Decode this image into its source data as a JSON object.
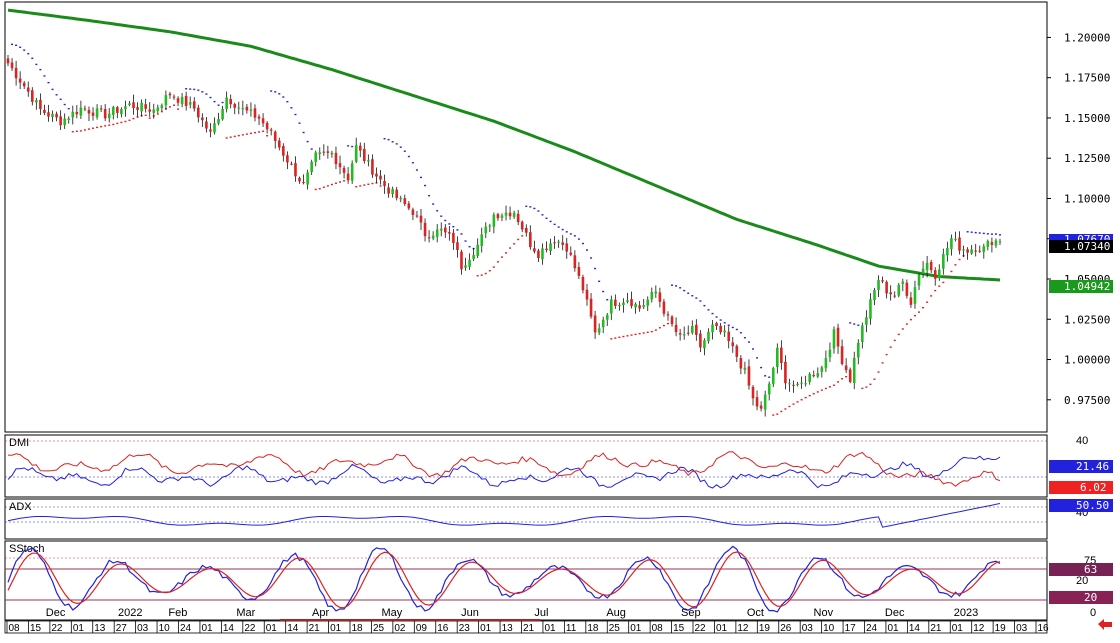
{
  "chart_data": {
    "type": "candlestick",
    "instrument": "EUR/USD daily",
    "price_panel": {
      "yticks": [
        "1.20000",
        "1.17500",
        "1.15000",
        "1.12500",
        "1.10000",
        "1.07500",
        "1.05000",
        "1.02500",
        "1.00000",
        "0.97500"
      ],
      "ylim": [
        0.955,
        1.222
      ],
      "last_price": "1.07340",
      "psar_value": "1.07670",
      "ma_value": "1.04942",
      "ma_color": "#1a8a1a",
      "bull_color": "#22bb22",
      "bear_color": "#dd2222",
      "anchors": [
        {
          "i": 0,
          "p": 1.184
        },
        {
          "i": 4,
          "p": 1.17
        },
        {
          "i": 8,
          "p": 1.155
        },
        {
          "i": 13,
          "p": 1.148
        },
        {
          "i": 18,
          "p": 1.156
        },
        {
          "i": 24,
          "p": 1.152
        },
        {
          "i": 30,
          "p": 1.158
        },
        {
          "i": 36,
          "p": 1.155
        },
        {
          "i": 40,
          "p": 1.165
        },
        {
          "i": 46,
          "p": 1.156
        },
        {
          "i": 50,
          "p": 1.14
        },
        {
          "i": 54,
          "p": 1.163
        },
        {
          "i": 58,
          "p": 1.155
        },
        {
          "i": 62,
          "p": 1.15
        },
        {
          "i": 65,
          "p": 1.14
        },
        {
          "i": 70,
          "p": 1.12
        },
        {
          "i": 73,
          "p": 1.108
        },
        {
          "i": 76,
          "p": 1.126
        },
        {
          "i": 80,
          "p": 1.128
        },
        {
          "i": 84,
          "p": 1.113
        },
        {
          "i": 86,
          "p": 1.132
        },
        {
          "i": 89,
          "p": 1.121
        },
        {
          "i": 93,
          "p": 1.108
        },
        {
          "i": 97,
          "p": 1.098
        },
        {
          "i": 100,
          "p": 1.092
        },
        {
          "i": 103,
          "p": 1.078
        },
        {
          "i": 107,
          "p": 1.08
        },
        {
          "i": 110,
          "p": 1.074
        },
        {
          "i": 112,
          "p": 1.058
        },
        {
          "i": 116,
          "p": 1.071
        },
        {
          "i": 120,
          "p": 1.09
        },
        {
          "i": 125,
          "p": 1.092
        },
        {
          "i": 129,
          "p": 1.072
        },
        {
          "i": 131,
          "p": 1.066
        },
        {
          "i": 135,
          "p": 1.075
        },
        {
          "i": 138,
          "p": 1.07
        },
        {
          "i": 142,
          "p": 1.044
        },
        {
          "i": 145,
          "p": 1.016
        },
        {
          "i": 149,
          "p": 1.035
        },
        {
          "i": 153,
          "p": 1.038
        },
        {
          "i": 156,
          "p": 1.032
        },
        {
          "i": 160,
          "p": 1.042
        },
        {
          "i": 163,
          "p": 1.025
        },
        {
          "i": 166,
          "p": 1.013
        },
        {
          "i": 169,
          "p": 1.018
        },
        {
          "i": 171,
          "p": 1.008
        },
        {
          "i": 174,
          "p": 1.02
        },
        {
          "i": 177,
          "p": 1.015
        },
        {
          "i": 180,
          "p": 1.002
        },
        {
          "i": 182,
          "p": 0.992
        },
        {
          "i": 184,
          "p": 0.975
        },
        {
          "i": 186,
          "p": 0.968
        },
        {
          "i": 188,
          "p": 0.985
        },
        {
          "i": 190,
          "p": 1.005
        },
        {
          "i": 192,
          "p": 0.988
        },
        {
          "i": 195,
          "p": 0.982
        },
        {
          "i": 198,
          "p": 0.99
        },
        {
          "i": 201,
          "p": 0.995
        },
        {
          "i": 204,
          "p": 1.016
        },
        {
          "i": 206,
          "p": 1.0
        },
        {
          "i": 208,
          "p": 0.988
        },
        {
          "i": 210,
          "p": 1.012
        },
        {
          "i": 213,
          "p": 1.035
        },
        {
          "i": 215,
          "p": 1.05
        },
        {
          "i": 217,
          "p": 1.043
        },
        {
          "i": 219,
          "p": 1.04
        },
        {
          "i": 221,
          "p": 1.048
        },
        {
          "i": 223,
          "p": 1.036
        },
        {
          "i": 225,
          "p": 1.054
        },
        {
          "i": 227,
          "p": 1.06
        },
        {
          "i": 229,
          "p": 1.053
        },
        {
          "i": 231,
          "p": 1.064
        },
        {
          "i": 233,
          "p": 1.075
        },
        {
          "i": 235,
          "p": 1.07
        },
        {
          "i": 237,
          "p": 1.068
        },
        {
          "i": 239,
          "p": 1.07
        },
        {
          "i": 241,
          "p": 1.069
        },
        {
          "i": 243,
          "p": 1.074
        },
        {
          "i": 245,
          "p": 1.0734
        }
      ],
      "ma_points": [
        {
          "i": 0,
          "p": 1.217
        },
        {
          "i": 20,
          "p": 1.2105
        },
        {
          "i": 40,
          "p": 1.2035
        },
        {
          "i": 60,
          "p": 1.1945
        },
        {
          "i": 80,
          "p": 1.18
        },
        {
          "i": 100,
          "p": 1.164
        },
        {
          "i": 120,
          "p": 1.148
        },
        {
          "i": 140,
          "p": 1.129
        },
        {
          "i": 160,
          "p": 1.108
        },
        {
          "i": 180,
          "p": 1.087
        },
        {
          "i": 200,
          "p": 1.071
        },
        {
          "i": 215,
          "p": 1.058
        },
        {
          "i": 230,
          "p": 1.0515
        },
        {
          "i": 245,
          "p": 1.0494
        }
      ]
    },
    "bar_count": 246,
    "month_labels": [
      {
        "i": 14,
        "label": "Dec"
      },
      {
        "i": 36,
        "label": "2022"
      },
      {
        "i": 50,
        "label": "Feb"
      },
      {
        "i": 70,
        "label": "Mar"
      },
      {
        "i": 92,
        "label": "Apr"
      },
      {
        "i": 113,
        "label": "May"
      },
      {
        "i": 136,
        "label": "Jun"
      },
      {
        "i": 157,
        "label": "Jul"
      },
      {
        "i": 179,
        "label": "Aug"
      },
      {
        "i": 201,
        "label": "Sep"
      },
      {
        "i": 220,
        "label": "Oct"
      },
      {
        "i": 240,
        "label": "Nov"
      },
      {
        "i": 261,
        "label": "Dec"
      },
      {
        "i": 282,
        "label": "2023"
      }
    ],
    "date_ticks": [
      "08",
      "15",
      "22",
      "01",
      "13",
      "27",
      "03",
      "10",
      "24",
      "01",
      "14",
      "22",
      "01",
      "14",
      "21",
      "01",
      "18",
      "25",
      "02",
      "09",
      "16",
      "23",
      "01",
      "13",
      "21",
      "01",
      "11",
      "18",
      "25",
      "01",
      "08",
      "15",
      "22",
      "01",
      "12",
      "19",
      "26",
      "03",
      "10",
      "17",
      "24",
      "01",
      "14",
      "21",
      "01",
      "12",
      "19",
      "03",
      "16"
    ],
    "dmi": {
      "label": "DMI",
      "plus_value": "21.46",
      "minus_value": "6.02",
      "level_label": "40",
      "plus_color": "#2222dd",
      "minus_color": "#dd2222"
    },
    "adx": {
      "label": "ADX",
      "value": "50.50",
      "level_label": "40",
      "color": "#2222dd"
    },
    "sstoch": {
      "label": "SStoch",
      "k_value": "63",
      "d_value": "20",
      "level_labels": [
        "75",
        "20",
        "0"
      ],
      "k_color": "#2222dd",
      "d_color": "#dd2222"
    }
  }
}
